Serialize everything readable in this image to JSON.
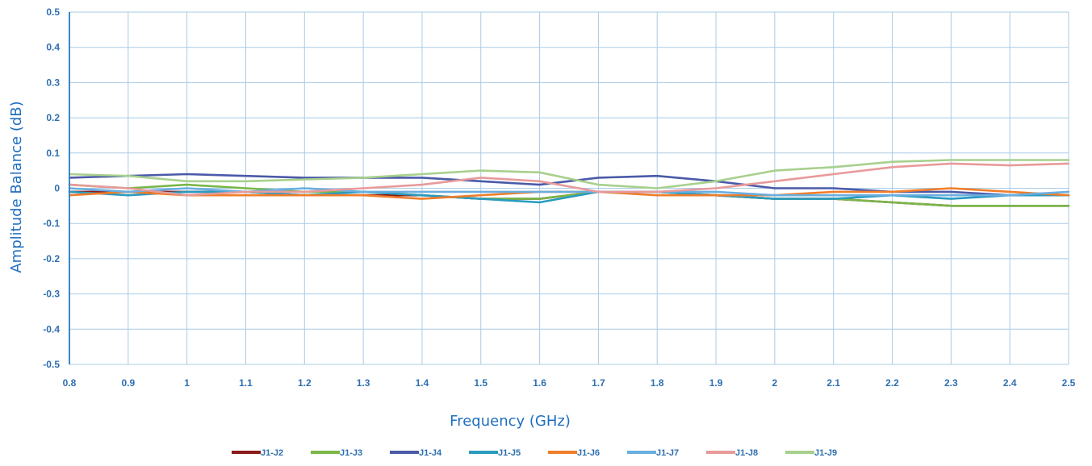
{
  "chart_data": {
    "type": "line",
    "title": "",
    "xlabel": "Frequency (GHz)",
    "ylabel": "Amplitude Balance (dB)",
    "xlim": [
      0.8,
      2.5
    ],
    "ylim": [
      -0.5,
      0.5
    ],
    "xticks": [
      "0.8",
      "0.9",
      "1",
      "1.1",
      "1.2",
      "1.3",
      "1.4",
      "1.5",
      "1.6",
      "1.7",
      "1.8",
      "1.9",
      "2",
      "2.1",
      "2.2",
      "2.3",
      "2.4",
      "2.5"
    ],
    "yticks": [
      "0.5",
      "0.4",
      "0.3",
      "0.2",
      "0.1",
      "0",
      "-0.1",
      "-0.2",
      "-0.3",
      "-0.4",
      "-0.5"
    ],
    "grid": true,
    "legend_position": "bottom",
    "x": [
      0.8,
      0.9,
      1.0,
      1.1,
      1.2,
      1.3,
      1.4,
      1.5,
      1.6,
      1.7,
      1.8,
      1.9,
      2.0,
      2.1,
      2.2,
      2.3,
      2.4,
      2.5
    ],
    "series": [
      {
        "name": "J1-J2",
        "color": "#8b1a1a",
        "values": [
          -0.01,
          -0.01,
          -0.01,
          -0.01,
          -0.02,
          -0.02,
          -0.02,
          -0.03,
          -0.03,
          -0.01,
          -0.01,
          -0.02,
          -0.03,
          -0.03,
          -0.04,
          -0.05,
          -0.05,
          -0.05
        ]
      },
      {
        "name": "J1-J3",
        "color": "#7ab648",
        "values": [
          0.01,
          0.0,
          0.01,
          0.0,
          -0.01,
          -0.01,
          -0.02,
          -0.03,
          -0.03,
          -0.01,
          -0.01,
          -0.02,
          -0.03,
          -0.03,
          -0.04,
          -0.05,
          -0.05,
          -0.05
        ]
      },
      {
        "name": "J1-J4",
        "color": "#4a5aa8",
        "values": [
          0.03,
          0.035,
          0.04,
          0.035,
          0.03,
          0.03,
          0.03,
          0.02,
          0.01,
          0.03,
          0.035,
          0.02,
          0.0,
          0.0,
          -0.01,
          -0.01,
          -0.02,
          -0.02
        ]
      },
      {
        "name": "J1-J5",
        "color": "#2a9bbf",
        "values": [
          -0.01,
          -0.02,
          -0.01,
          -0.01,
          -0.02,
          -0.01,
          -0.02,
          -0.03,
          -0.04,
          -0.01,
          -0.01,
          -0.02,
          -0.03,
          -0.03,
          -0.02,
          -0.03,
          -0.02,
          -0.02
        ]
      },
      {
        "name": "J1-J6",
        "color": "#f07d29",
        "values": [
          -0.02,
          -0.01,
          -0.02,
          -0.02,
          -0.02,
          -0.02,
          -0.03,
          -0.02,
          -0.01,
          -0.01,
          -0.02,
          -0.02,
          -0.02,
          -0.01,
          -0.01,
          0.0,
          -0.01,
          -0.02
        ]
      },
      {
        "name": "J1-J7",
        "color": "#6aaee0",
        "values": [
          0.0,
          -0.01,
          0.0,
          -0.01,
          0.0,
          -0.01,
          -0.01,
          -0.01,
          -0.01,
          -0.01,
          -0.01,
          -0.01,
          -0.02,
          -0.02,
          -0.02,
          -0.02,
          -0.02,
          -0.01
        ]
      },
      {
        "name": "J1-J8",
        "color": "#e89a9a",
        "values": [
          0.01,
          0.0,
          -0.02,
          -0.01,
          -0.01,
          0.0,
          0.01,
          0.03,
          0.02,
          -0.01,
          -0.01,
          0.0,
          0.02,
          0.04,
          0.06,
          0.07,
          0.065,
          0.07
        ]
      },
      {
        "name": "J1-J9",
        "color": "#a8d08d",
        "values": [
          0.04,
          0.035,
          0.02,
          0.02,
          0.025,
          0.03,
          0.04,
          0.05,
          0.045,
          0.01,
          0.0,
          0.02,
          0.05,
          0.06,
          0.075,
          0.08,
          0.08,
          0.08
        ]
      }
    ]
  }
}
